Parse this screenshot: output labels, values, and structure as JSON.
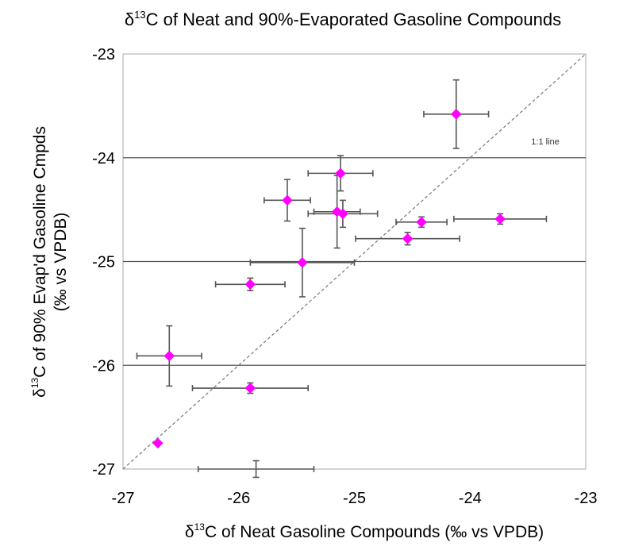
{
  "chart_data": {
    "type": "scatter",
    "title": {
      "prefix": "δ",
      "sup": "13",
      "main": "C of Neat and 90%-Evaporated Gasoline Compounds"
    },
    "xlabel": {
      "prefix": "δ",
      "sup": "13",
      "main": "C of Neat Gasoline Compounds (‰ vs VPDB)"
    },
    "ylabel": {
      "prefix": "δ",
      "sup": "13",
      "line1": "C of 90% Evap'd Gasoline Cmpds",
      "line2": "(‰ vs VPDB)"
    },
    "xlim": [
      -27,
      -23
    ],
    "ylim": [
      -27,
      -23
    ],
    "x_ticks": [
      -27,
      -26,
      -25,
      -24,
      -23
    ],
    "y_ticks": [
      -23,
      -24,
      -25,
      -26,
      -27
    ],
    "x_tick_labels": [
      "-27",
      "-26",
      "-25",
      "-24",
      "-23"
    ],
    "y_tick_labels": [
      "-23",
      "-24",
      "-25",
      "-26",
      "-27"
    ],
    "grid": "horizontal",
    "reference_line": {
      "label": "1:1 line",
      "from": [
        -27,
        -27
      ],
      "to": [
        -23,
        -23
      ]
    },
    "colors": {
      "marker": "#ff00ff",
      "gridline": "#555555",
      "errorbar": "#555555",
      "reference_line": "#777777",
      "frame": "#aaaaaa"
    },
    "points": [
      {
        "x": -24.12,
        "y": -23.58,
        "xerr": 0.28,
        "yerr": 0.33
      },
      {
        "x": -25.12,
        "y": -24.15,
        "xerr": 0.28,
        "yerr": 0.17
      },
      {
        "x": -25.58,
        "y": -24.41,
        "xerr": 0.2,
        "yerr": 0.2
      },
      {
        "x": -25.15,
        "y": -24.52,
        "xerr": 0.2,
        "yerr": 0.35
      },
      {
        "x": -25.1,
        "y": -24.54,
        "xerr": 0.3,
        "yerr": 0.13
      },
      {
        "x": -24.42,
        "y": -24.62,
        "xerr": 0.22,
        "yerr": 0.05
      },
      {
        "x": -23.74,
        "y": -24.59,
        "xerr": 0.4,
        "yerr": 0.05
      },
      {
        "x": -24.54,
        "y": -24.78,
        "xerr": 0.45,
        "yerr": 0.06
      },
      {
        "x": -25.45,
        "y": -25.01,
        "xerr": 0.45,
        "yerr": 0.33
      },
      {
        "x": -25.9,
        "y": -25.22,
        "xerr": 0.3,
        "yerr": 0.06
      },
      {
        "x": -26.6,
        "y": -25.91,
        "xerr": 0.28,
        "yerr": 0.29
      },
      {
        "x": -25.9,
        "y": -26.22,
        "xerr": 0.5,
        "yerr": 0.05
      },
      {
        "x": -26.7,
        "y": -26.75,
        "xerr": 0.0,
        "yerr": 0.0
      },
      {
        "x": -25.85,
        "y": -27.0,
        "xerr": 0.5,
        "yerr": 0.08
      }
    ]
  }
}
